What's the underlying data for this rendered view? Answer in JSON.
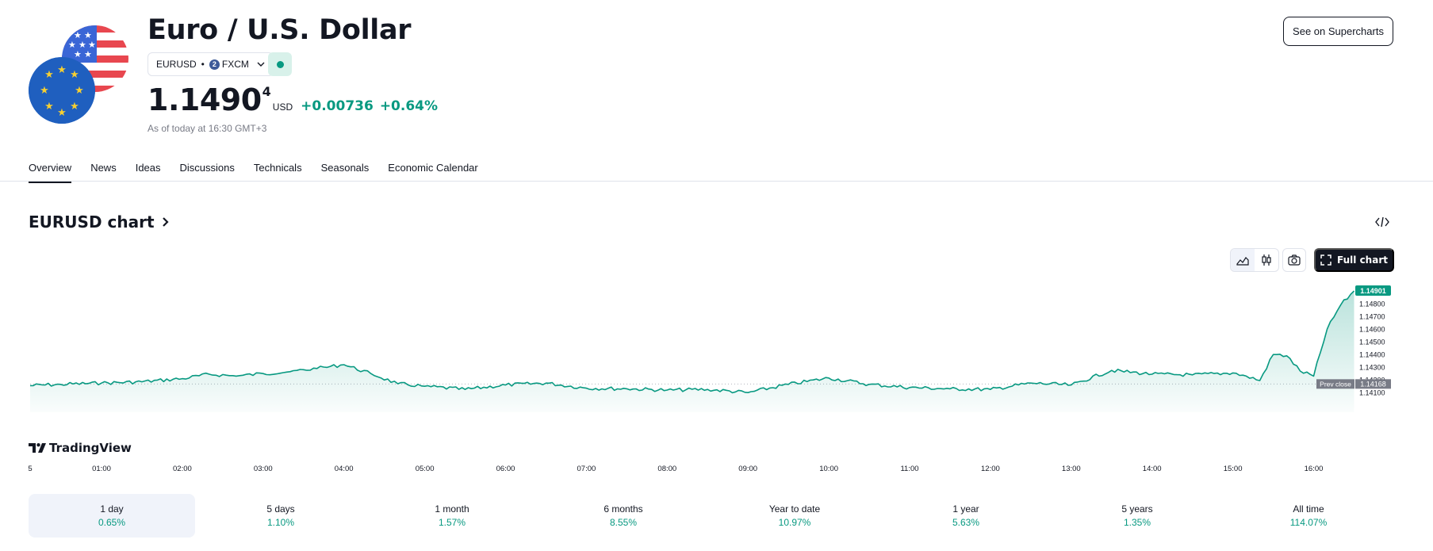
{
  "header": {
    "title": "Euro / U.S. Dollar",
    "symbol": "EURUSD",
    "separator": "•",
    "exchange_logo": "2",
    "exchange": "FXCM",
    "price_main": "1.1490",
    "price_sup": "4",
    "currency": "USD",
    "change": "+0.00736",
    "change_pct": "+0.64%",
    "as_of": "As of today at 16:30 GMT+3",
    "supercharts_label": "See on Supercharts"
  },
  "tabs": [
    {
      "label": "Overview",
      "active": true
    },
    {
      "label": "News"
    },
    {
      "label": "Ideas"
    },
    {
      "label": "Discussions"
    },
    {
      "label": "Technicals"
    },
    {
      "label": "Seasonals"
    },
    {
      "label": "Economic Calendar"
    }
  ],
  "chart_section": {
    "title": "EURUSD chart",
    "full_chart_label": "Full chart",
    "brand": "TradingView",
    "icons": [
      "embed-code-icon",
      "area-chart-icon",
      "candles-icon",
      "camera-icon",
      "fullscreen-icon",
      "chevron-right-icon"
    ]
  },
  "chart_data": {
    "type": "area",
    "color": "#089981",
    "x_ticks": [
      "5",
      "01:00",
      "02:00",
      "03:00",
      "04:00",
      "05:00",
      "06:00",
      "07:00",
      "08:00",
      "09:00",
      "10:00",
      "11:00",
      "12:00",
      "13:00",
      "14:00",
      "15:00",
      "16:00"
    ],
    "y_ticks": [
      "1.14800",
      "1.14700",
      "1.14600",
      "1.14500",
      "1.14400",
      "1.14300",
      "1.14200",
      "1.14100"
    ],
    "ylim": [
      1.1407,
      1.1492
    ],
    "last_price": 1.14901,
    "last_price_label": "1.14901",
    "prev_close": 1.14168,
    "prev_close_label": "Prev close",
    "prev_close_value_label": "1.14168",
    "x": [
      "00:08",
      "00:30",
      "01:00",
      "01:30",
      "02:00",
      "02:20",
      "02:40",
      "03:00",
      "03:20",
      "03:40",
      "04:00",
      "04:20",
      "04:40",
      "05:00",
      "05:30",
      "06:00",
      "06:30",
      "07:00",
      "07:30",
      "08:00",
      "08:30",
      "09:00",
      "09:30",
      "10:00",
      "10:30",
      "11:00",
      "11:30",
      "12:00",
      "12:30",
      "13:00",
      "13:30",
      "14:00",
      "14:30",
      "15:00",
      "15:10",
      "15:20",
      "15:30",
      "15:40",
      "15:50",
      "16:00",
      "16:10",
      "16:20",
      "16:30"
    ],
    "y": [
      1.14155,
      1.14165,
      1.14175,
      1.14185,
      1.1421,
      1.14245,
      1.1423,
      1.1425,
      1.14265,
      1.1429,
      1.1432,
      1.1425,
      1.1417,
      1.1415,
      1.14125,
      1.1416,
      1.14175,
      1.14135,
      1.1413,
      1.1412,
      1.14125,
      1.141,
      1.14165,
      1.14215,
      1.14165,
      1.1414,
      1.1413,
      1.14125,
      1.14175,
      1.1416,
      1.14275,
      1.14245,
      1.1424,
      1.14255,
      1.1423,
      1.14195,
      1.144,
      1.1439,
      1.1427,
      1.1423,
      1.146,
      1.1479,
      1.14901
    ]
  },
  "periods": [
    {
      "label": "1 day",
      "value": "0.65%",
      "active": true
    },
    {
      "label": "5 days",
      "value": "1.10%"
    },
    {
      "label": "1 month",
      "value": "1.57%"
    },
    {
      "label": "6 months",
      "value": "8.55%"
    },
    {
      "label": "Year to date",
      "value": "10.97%"
    },
    {
      "label": "1 year",
      "value": "5.63%"
    },
    {
      "label": "5 years",
      "value": "1.35%"
    },
    {
      "label": "All time",
      "value": "114.07%"
    }
  ]
}
